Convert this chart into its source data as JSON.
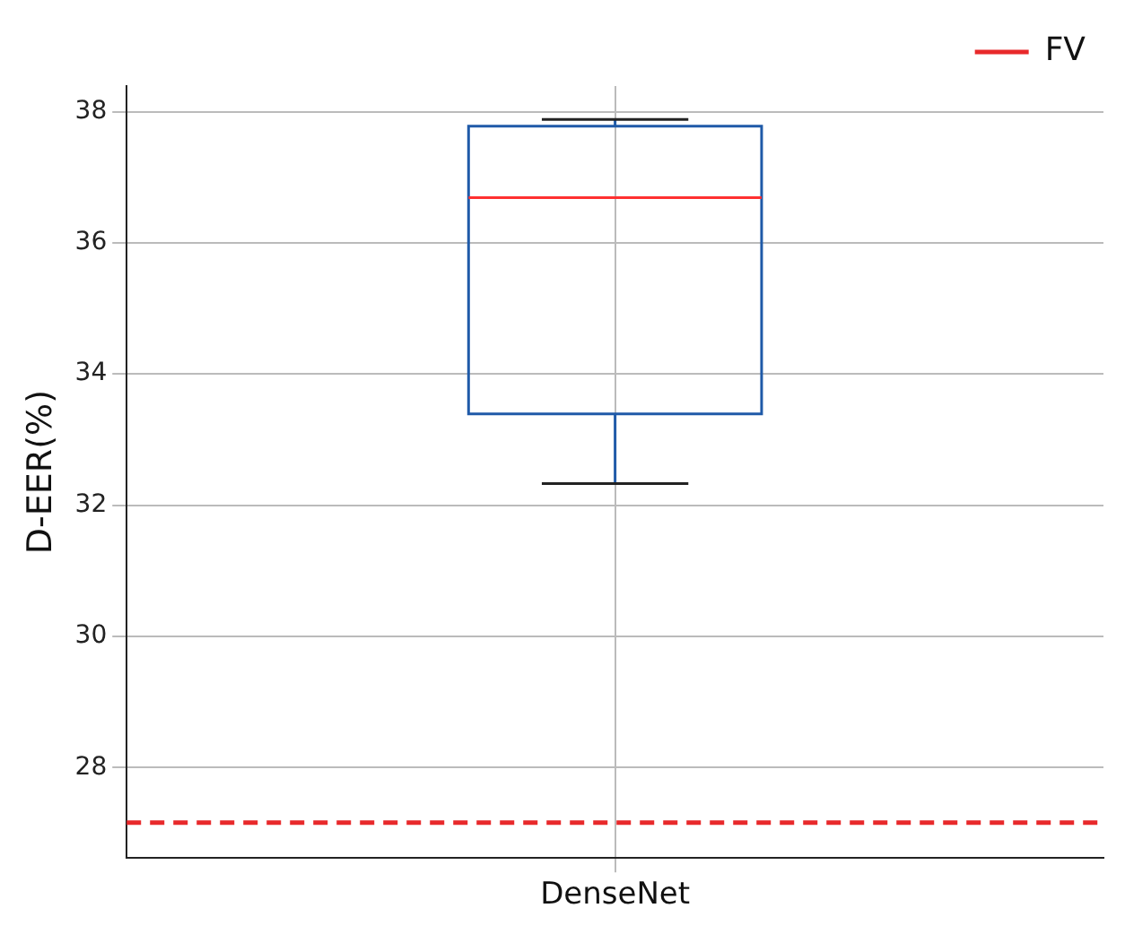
{
  "chart_data": {
    "type": "box",
    "categories": [
      "DenseNet"
    ],
    "ylabel": "D-EER(%)",
    "series": [
      {
        "color": "#1f5aa8",
        "boxes": [
          {
            "low": 32.33,
            "q1": 33.39,
            "median": 36.69,
            "q3": 37.78,
            "high": 37.88
          }
        ]
      }
    ],
    "ref_lines": [
      {
        "axis": "y",
        "value": 27.16,
        "label": "FV",
        "color": "#e8292b",
        "line_style": "dashed"
      }
    ],
    "ylim": [
      26.62,
      38.39
    ],
    "yticks": [
      28,
      30,
      32,
      34,
      36,
      38
    ],
    "grid": true,
    "legend": "top right"
  }
}
